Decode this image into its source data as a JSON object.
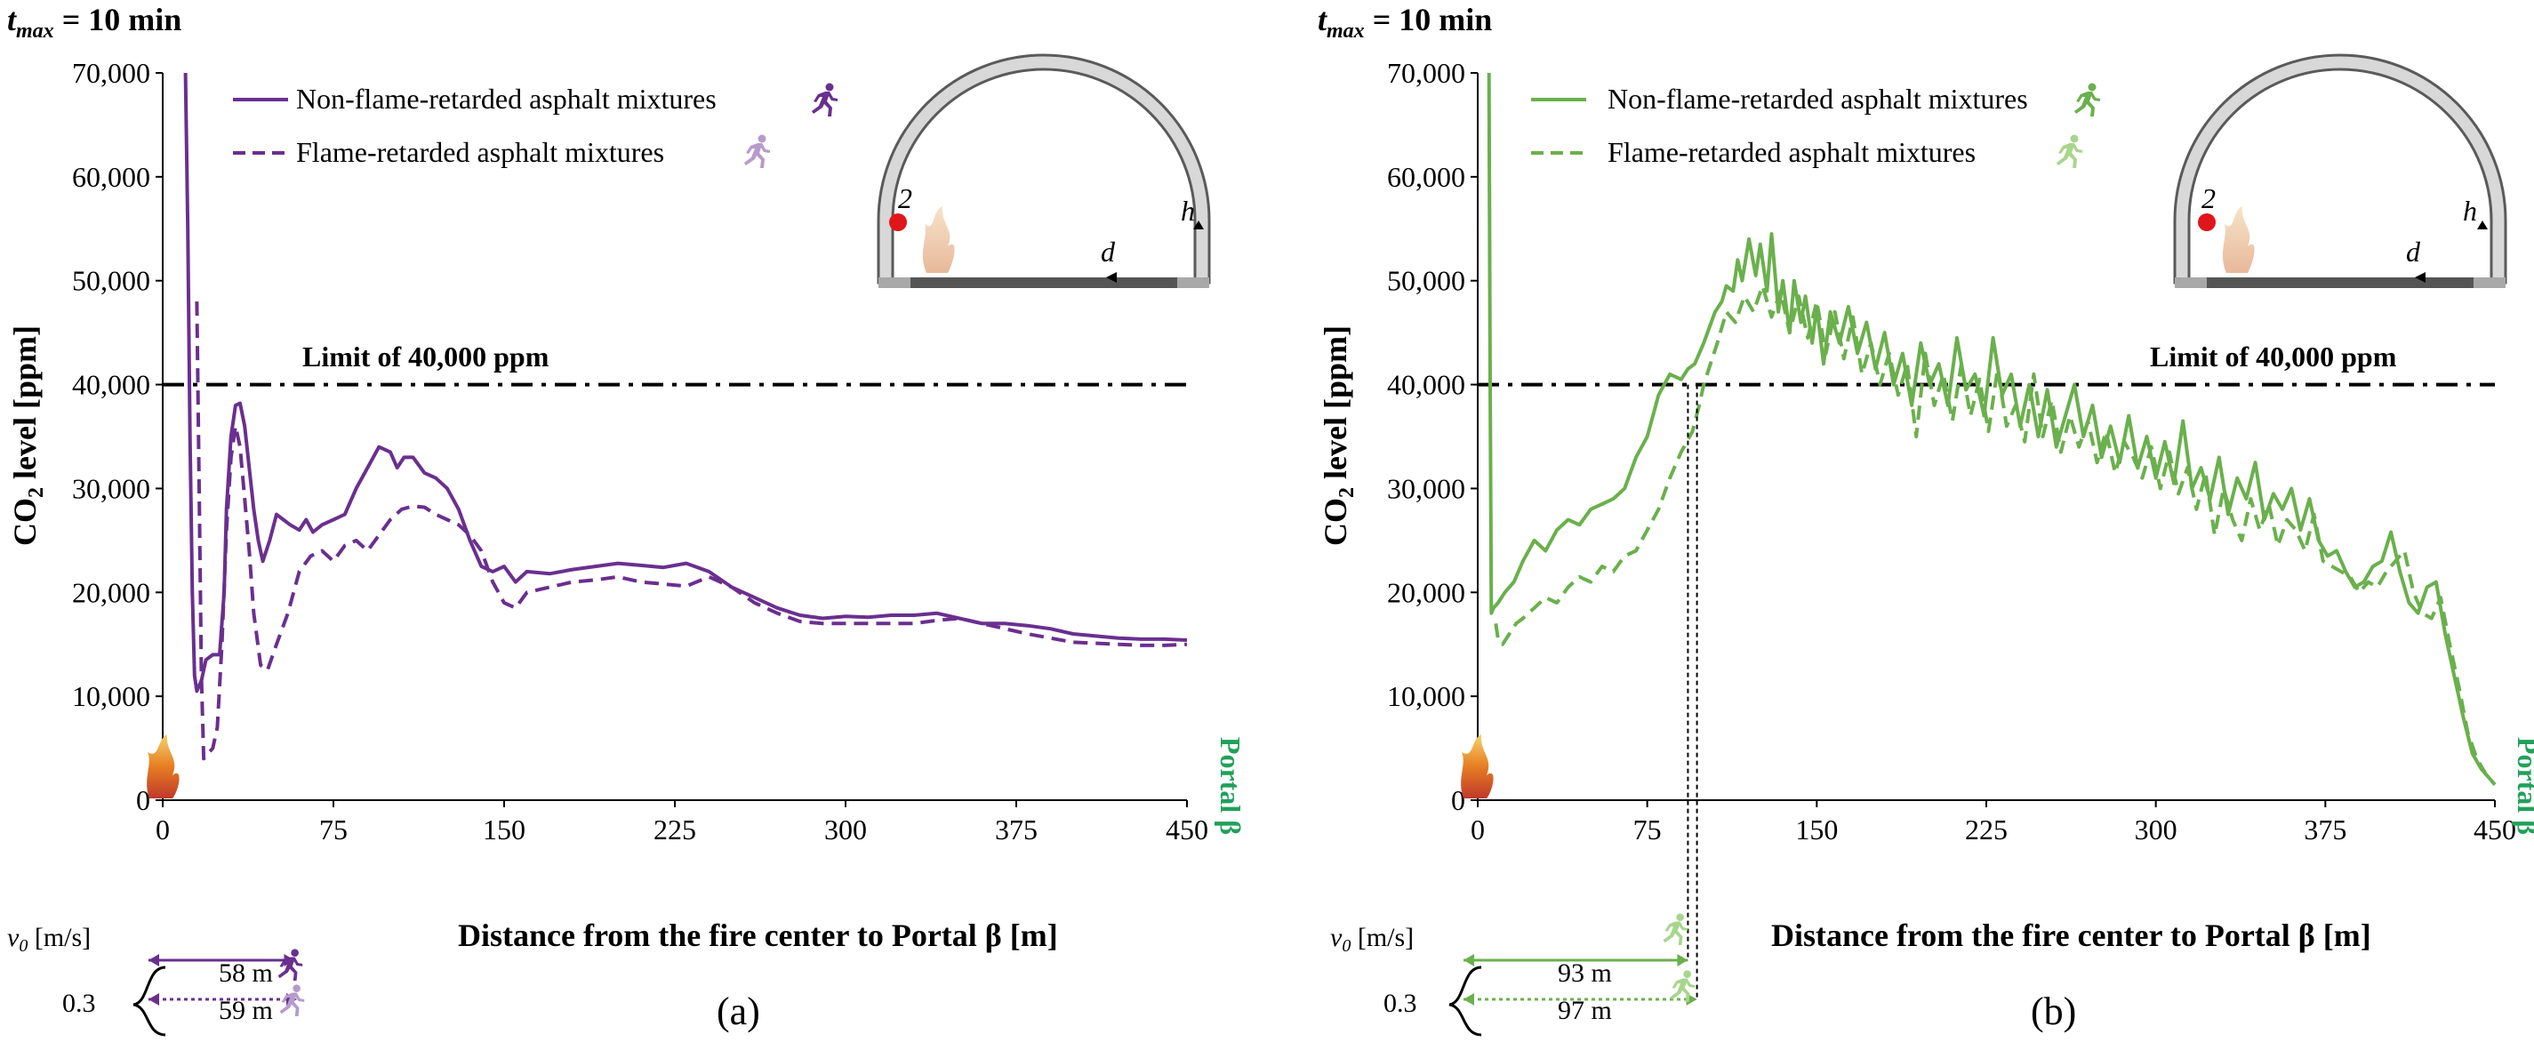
{
  "colors": {
    "purple": "#6a2f8f",
    "purple_light": "#b79acb",
    "green": "#6ab04c",
    "green_light": "#a8d58c",
    "portal_green": "#22a05a",
    "fire_dot": "#e0161b",
    "tunnel_gray": "#9a9a9a"
  },
  "chart_data": [
    {
      "type": "line",
      "panel_label": "(a)",
      "title_prefix": "t",
      "title_sub": "max",
      "title_suffix": " = 10 min",
      "xlabel": "Distance from the fire center to Portal β [m]",
      "ylabel_main": "CO",
      "ylabel_sub": "2",
      "ylabel_rest": " level [ppm]",
      "xlim": [
        0,
        450
      ],
      "ylim": [
        0,
        70000
      ],
      "xticks": [
        0,
        75,
        150,
        225,
        300,
        375,
        450
      ],
      "yticks": [
        0,
        10000,
        20000,
        30000,
        40000,
        50000,
        60000,
        70000
      ],
      "xtick_labels": [
        "0",
        "75",
        "150",
        "225",
        "300",
        "375",
        "450"
      ],
      "ytick_labels": [
        "0",
        "10,000",
        "20,000",
        "30,000",
        "40,000",
        "50,000",
        "60,000",
        "70,000"
      ],
      "limit_value": 40000,
      "limit_label": "Limit of 40,000 ppm",
      "portal_label": "Portal β",
      "tunnel_labels": {
        "sensor": "2",
        "h": "h",
        "d": "d"
      },
      "series": [
        {
          "name": "Non-flame-retarded asphalt mixtures",
          "style": "solid",
          "x": [
            10,
            11,
            12,
            13,
            14,
            15,
            17,
            19,
            22,
            25,
            27,
            28,
            30,
            32,
            34,
            36,
            38,
            40,
            42,
            44,
            47,
            50,
            53,
            56,
            60,
            63,
            66,
            70,
            75,
            80,
            85,
            90,
            95,
            100,
            103,
            106,
            110,
            115,
            120,
            125,
            130,
            135,
            140,
            145,
            150,
            155,
            160,
            170,
            180,
            190,
            200,
            210,
            220,
            230,
            240,
            250,
            260,
            270,
            280,
            290,
            300,
            310,
            320,
            330,
            340,
            350,
            360,
            370,
            380,
            390,
            400,
            410,
            420,
            430,
            440,
            450
          ],
          "y": [
            70000,
            55000,
            35000,
            20000,
            12000,
            10500,
            11500,
            13500,
            14000,
            14000,
            20000,
            28000,
            35000,
            38000,
            38200,
            36000,
            32000,
            28000,
            25000,
            23000,
            25000,
            27500,
            27000,
            26500,
            26000,
            27000,
            25800,
            26500,
            27000,
            27500,
            30000,
            32000,
            34000,
            33500,
            32000,
            33000,
            33000,
            31500,
            31000,
            30000,
            28000,
            25000,
            22500,
            22000,
            22500,
            21000,
            22000,
            21800,
            22200,
            22500,
            22800,
            22600,
            22400,
            22800,
            22000,
            20500,
            19500,
            18500,
            17800,
            17500,
            17700,
            17600,
            17800,
            17800,
            18000,
            17500,
            17000,
            17000,
            16800,
            16500,
            16000,
            15800,
            15600,
            15500,
            15500,
            15400
          ]
        },
        {
          "name": "Flame-retarded asphalt mixtures",
          "style": "dashed",
          "x": [
            15,
            16,
            17,
            18,
            20,
            22,
            24,
            26,
            28,
            30,
            32,
            34,
            36,
            38,
            40,
            43,
            46,
            50,
            55,
            60,
            65,
            70,
            75,
            80,
            85,
            90,
            95,
            100,
            105,
            110,
            115,
            120,
            125,
            130,
            135,
            140,
            145,
            150,
            155,
            160,
            170,
            180,
            190,
            200,
            210,
            220,
            230,
            240,
            250,
            260,
            270,
            280,
            290,
            300,
            310,
            320,
            330,
            340,
            350,
            360,
            370,
            380,
            390,
            400,
            410,
            420,
            430,
            440,
            450
          ],
          "y": [
            48000,
            30000,
            12000,
            4000,
            4500,
            5000,
            7000,
            15000,
            26000,
            33000,
            36000,
            34000,
            29000,
            24000,
            18000,
            13000,
            12500,
            15000,
            18000,
            22000,
            23500,
            24000,
            23000,
            24500,
            25000,
            24000,
            25500,
            27000,
            28000,
            28300,
            28200,
            27500,
            27000,
            26500,
            25500,
            24000,
            21000,
            19000,
            18500,
            20000,
            20500,
            21000,
            21200,
            21500,
            21000,
            20800,
            20600,
            21500,
            20500,
            19000,
            18000,
            17200,
            17000,
            17000,
            17000,
            17000,
            17000,
            17300,
            17500,
            17000,
            16500,
            16000,
            15600,
            15200,
            15100,
            15000,
            14900,
            14900,
            15000
          ]
        }
      ],
      "annotations": {
        "v0_label": "v",
        "v0_sub": "0",
        "v0_unit": " [m/s]",
        "speed": "0.3",
        "dist_solid": "58 m",
        "dist_dashed": "59 m"
      }
    },
    {
      "type": "line",
      "panel_label": "(b)",
      "title_prefix": "t",
      "title_sub": "max",
      "title_suffix": " = 10 min",
      "xlabel": "Distance from the fire center to Portal β [m]",
      "ylabel_main": "CO",
      "ylabel_sub": "2",
      "ylabel_rest": " level [ppm]",
      "xlim": [
        0,
        450
      ],
      "ylim": [
        0,
        70000
      ],
      "xticks": [
        0,
        75,
        150,
        225,
        300,
        375,
        450
      ],
      "yticks": [
        0,
        10000,
        20000,
        30000,
        40000,
        50000,
        60000,
        70000
      ],
      "xtick_labels": [
        "0",
        "75",
        "150",
        "225",
        "300",
        "375",
        "450"
      ],
      "ytick_labels": [
        "0",
        "10,000",
        "20,000",
        "30,000",
        "40,000",
        "50,000",
        "60,000",
        "70,000"
      ],
      "limit_value": 40000,
      "limit_label": "Limit of 40,000 ppm",
      "portal_label": "Portal β",
      "tunnel_labels": {
        "sensor": "2",
        "h": "h",
        "d": "d"
      },
      "series": [
        {
          "name": "Non-flame-retarded asphalt mixtures",
          "style": "solid",
          "x": [
            5,
            5.5,
            6,
            7,
            9,
            12,
            16,
            20,
            25,
            30,
            35,
            40,
            45,
            50,
            55,
            60,
            65,
            70,
            75,
            80,
            85,
            90,
            93,
            96,
            100,
            105,
            108,
            110,
            113,
            115,
            117,
            120,
            123,
            125,
            128,
            130,
            133,
            135,
            138,
            140,
            143,
            145,
            148,
            150,
            153,
            156,
            160,
            164,
            168,
            172,
            176,
            180,
            184,
            188,
            192,
            196,
            200,
            204,
            208,
            212,
            216,
            220,
            224,
            228,
            232,
            236,
            240,
            244,
            248,
            252,
            256,
            260,
            264,
            268,
            272,
            276,
            280,
            284,
            288,
            292,
            296,
            300,
            304,
            308,
            312,
            316,
            320,
            324,
            328,
            332,
            336,
            340,
            344,
            348,
            352,
            356,
            360,
            364,
            368,
            372,
            376,
            380,
            384,
            388,
            392,
            396,
            400,
            404,
            408,
            412,
            416,
            420,
            424,
            428,
            432,
            436,
            440,
            444,
            448,
            450
          ],
          "y": [
            70000,
            40000,
            18000,
            18500,
            19000,
            20000,
            21000,
            23000,
            25000,
            24000,
            26000,
            27000,
            26500,
            28000,
            28500,
            29000,
            30000,
            33000,
            35000,
            39000,
            41000,
            40500,
            41500,
            42000,
            44000,
            47000,
            48000,
            49500,
            49000,
            52000,
            50000,
            54000,
            50500,
            53500,
            49000,
            54500,
            47000,
            50000,
            45000,
            50000,
            46000,
            48500,
            44000,
            47500,
            42000,
            47000,
            44000,
            47500,
            43000,
            46000,
            41500,
            45000,
            40000,
            43000,
            38000,
            44000,
            40000,
            42000,
            38000,
            44500,
            39500,
            41000,
            37000,
            44500,
            39000,
            41000,
            36000,
            40000,
            35000,
            39500,
            34000,
            37000,
            40000,
            35000,
            38000,
            33000,
            36000,
            32500,
            37000,
            32000,
            35000,
            31000,
            34500,
            30500,
            36500,
            30000,
            32000,
            29000,
            33000,
            27500,
            31000,
            29000,
            32500,
            27000,
            29500,
            28000,
            30000,
            26000,
            29000,
            25000,
            23500,
            24000,
            22000,
            20500,
            21000,
            22500,
            23000,
            25800,
            22000,
            19000,
            18000,
            20500,
            21000,
            16000,
            12000,
            8000,
            4500,
            3000,
            2000,
            1500
          ]
        },
        {
          "name": "Flame-retarded asphalt mixtures",
          "style": "dashed",
          "x": [
            8,
            9,
            11,
            14,
            17,
            20,
            25,
            30,
            35,
            40,
            45,
            50,
            55,
            60,
            65,
            70,
            75,
            80,
            85,
            90,
            95,
            98,
            100,
            103,
            106,
            110,
            114,
            118,
            122,
            126,
            130,
            134,
            138,
            142,
            146,
            150,
            154,
            158,
            162,
            166,
            170,
            174,
            178,
            182,
            186,
            190,
            194,
            198,
            202,
            206,
            210,
            214,
            218,
            222,
            226,
            230,
            234,
            238,
            242,
            246,
            250,
            254,
            258,
            262,
            266,
            270,
            274,
            278,
            282,
            286,
            290,
            294,
            298,
            302,
            306,
            310,
            314,
            318,
            322,
            326,
            330,
            334,
            338,
            342,
            346,
            350,
            354,
            358,
            362,
            366,
            370,
            374,
            378,
            382,
            386,
            390,
            394,
            398,
            402,
            406,
            410,
            414,
            418,
            422,
            426,
            430,
            434,
            438,
            442,
            446,
            450
          ],
          "y": [
            17000,
            15500,
            15000,
            16000,
            17000,
            17500,
            18500,
            19500,
            19000,
            20500,
            21500,
            21000,
            22500,
            22000,
            23500,
            24000,
            26000,
            28000,
            31000,
            33500,
            35500,
            38000,
            40000,
            42000,
            44000,
            47000,
            46000,
            48500,
            47000,
            49500,
            46500,
            49000,
            45000,
            48500,
            44500,
            48000,
            43000,
            47000,
            42500,
            46500,
            41000,
            44000,
            40000,
            43000,
            39000,
            42000,
            35000,
            43000,
            38000,
            41000,
            36500,
            42000,
            37000,
            40500,
            35500,
            41500,
            36000,
            38000,
            34500,
            41000,
            35000,
            38500,
            33500,
            37000,
            34000,
            36500,
            32500,
            35500,
            31500,
            34500,
            33000,
            31000,
            34000,
            30000,
            33500,
            29500,
            32000,
            28000,
            31500,
            25500,
            30000,
            27000,
            25000,
            29000,
            26000,
            28500,
            24500,
            27000,
            26000,
            24000,
            27500,
            23000,
            22500,
            22000,
            21500,
            20000,
            21000,
            20500,
            22000,
            23000,
            24000,
            20000,
            18000,
            17500,
            19500,
            15000,
            11000,
            6500,
            4000,
            2500,
            1500
          ]
        }
      ],
      "annotations": {
        "v0_label": "v",
        "v0_sub": "0",
        "v0_unit": " [m/s]",
        "speed": "0.3",
        "dist_solid": "93 m",
        "dist_dashed": "97 m",
        "crossing_solid_x": 93,
        "crossing_dashed_x": 97
      }
    }
  ]
}
